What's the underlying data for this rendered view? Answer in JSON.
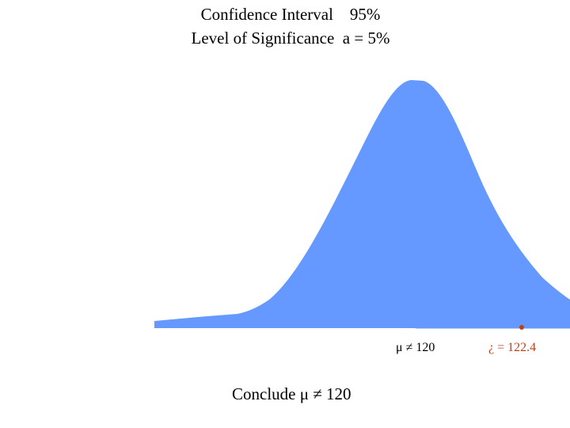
{
  "title": {
    "line1": "Confidence Interval    95%",
    "line2": "Level of Significance  a = 5%"
  },
  "labels": {
    "hypothesized_mean": "μ ≠ 120",
    "sample_mean": "¿ = 122.4"
  },
  "conclusion": "Conclude μ ≠ 120",
  "colors": {
    "curve_fill": "#6699ff",
    "marker": "#b5431c",
    "text": "#000000"
  }
}
